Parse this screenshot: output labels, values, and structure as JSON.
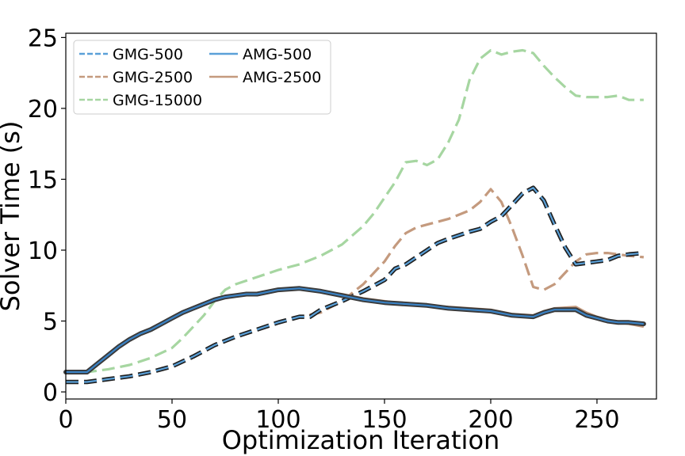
{
  "chart_data": {
    "type": "line",
    "title": "",
    "xlabel": "Optimization Iteration",
    "ylabel": "Solver Time (s)",
    "xlim": [
      0,
      278
    ],
    "ylim": [
      -0.5,
      25.3
    ],
    "xticks": [
      0,
      50,
      100,
      150,
      200,
      250
    ],
    "yticks": [
      0,
      5,
      10,
      15,
      20,
      25
    ],
    "legend": {
      "location": "top-left",
      "columns": 2,
      "entries": [
        "GMG-500",
        "AMG-500",
        "GMG-2500",
        "AMG-2500",
        "GMG-15000"
      ]
    },
    "colors": {
      "blue": "#5aa0d8",
      "brown": "#c49a7e",
      "green": "#a6d6a1",
      "dark": "#1f1f1f",
      "amg_blue": "#3a82c4"
    },
    "series": [
      {
        "name": "GMG-15000",
        "style": "dashed",
        "color": "#a6d6a1",
        "x": [
          0,
          10,
          20,
          30,
          40,
          50,
          55,
          60,
          65,
          70,
          75,
          80,
          90,
          100,
          110,
          120,
          130,
          140,
          145,
          150,
          155,
          160,
          165,
          170,
          175,
          180,
          185,
          190,
          195,
          200,
          205,
          210,
          215,
          220,
          225,
          230,
          235,
          240,
          245,
          250,
          255,
          260,
          265,
          272
        ],
        "values": [
          1.4,
          1.4,
          1.6,
          1.9,
          2.4,
          3.1,
          3.8,
          4.6,
          5.4,
          6.4,
          7.2,
          7.6,
          8.1,
          8.6,
          9.0,
          9.6,
          10.4,
          11.7,
          12.6,
          13.7,
          14.8,
          16.2,
          16.3,
          16.0,
          16.4,
          17.6,
          19.2,
          22.0,
          23.5,
          24.1,
          23.8,
          24.0,
          24.1,
          23.9,
          23.0,
          22.2,
          21.5,
          20.9,
          20.8,
          20.8,
          20.8,
          20.9,
          20.6,
          20.6
        ]
      },
      {
        "name": "GMG-2500",
        "style": "dashed",
        "color": "#c49a7e",
        "x": [
          0,
          10,
          20,
          30,
          40,
          50,
          60,
          70,
          80,
          90,
          100,
          110,
          120,
          130,
          140,
          150,
          155,
          160,
          165,
          170,
          180,
          190,
          195,
          200,
          205,
          210,
          215,
          220,
          225,
          230,
          235,
          240,
          245,
          250,
          255,
          260,
          265,
          272
        ],
        "values": [
          0.7,
          0.7,
          0.9,
          1.1,
          1.4,
          1.8,
          2.5,
          3.3,
          3.9,
          4.4,
          4.9,
          5.3,
          5.6,
          6.4,
          7.6,
          9.2,
          10.3,
          11.2,
          11.6,
          11.8,
          12.2,
          12.8,
          13.4,
          14.3,
          13.4,
          11.6,
          9.6,
          7.4,
          7.2,
          7.6,
          8.4,
          9.2,
          9.7,
          9.8,
          9.8,
          9.7,
          9.6,
          9.5
        ]
      },
      {
        "name": "GMG-500",
        "style": "dashed",
        "color": "#5aa0d8",
        "x": [
          0,
          10,
          20,
          30,
          40,
          50,
          60,
          70,
          80,
          90,
          100,
          110,
          115,
          120,
          130,
          140,
          150,
          155,
          160,
          170,
          175,
          180,
          190,
          195,
          200,
          205,
          210,
          215,
          220,
          225,
          230,
          235,
          240,
          245,
          250,
          255,
          260,
          265,
          272
        ],
        "values": [
          0.7,
          0.7,
          0.9,
          1.1,
          1.4,
          1.8,
          2.5,
          3.3,
          3.9,
          4.4,
          4.9,
          5.3,
          5.3,
          5.8,
          6.4,
          7.1,
          7.9,
          8.7,
          9.0,
          10.0,
          10.5,
          10.8,
          11.3,
          11.5,
          12.0,
          12.4,
          13.2,
          14.0,
          14.4,
          13.5,
          11.8,
          10.2,
          9.0,
          9.1,
          9.2,
          9.3,
          9.6,
          9.7,
          9.8
        ]
      },
      {
        "name": "AMG-2500",
        "style": "solid",
        "color": "#c49a7e",
        "x": [
          0,
          10,
          15,
          20,
          25,
          30,
          35,
          40,
          45,
          50,
          55,
          60,
          65,
          70,
          75,
          80,
          85,
          90,
          100,
          110,
          120,
          130,
          140,
          150,
          160,
          170,
          180,
          190,
          200,
          210,
          220,
          225,
          230,
          240,
          245,
          250,
          255,
          260,
          265,
          272
        ],
        "values": [
          1.4,
          1.4,
          2.0,
          2.6,
          3.2,
          3.7,
          4.1,
          4.4,
          4.8,
          5.2,
          5.6,
          5.9,
          6.2,
          6.5,
          6.7,
          6.8,
          6.9,
          6.9,
          7.2,
          7.3,
          7.1,
          6.9,
          6.6,
          6.4,
          6.2,
          6.1,
          6.0,
          5.9,
          5.8,
          5.5,
          5.4,
          5.7,
          5.9,
          6.0,
          5.6,
          5.3,
          5.1,
          4.9,
          4.8,
          4.6
        ]
      },
      {
        "name": "AMG-500",
        "style": "solid",
        "color": "#3a82c4",
        "x": [
          0,
          10,
          15,
          20,
          25,
          30,
          35,
          40,
          45,
          50,
          55,
          60,
          65,
          70,
          75,
          80,
          85,
          90,
          100,
          110,
          120,
          130,
          140,
          150,
          160,
          170,
          180,
          190,
          200,
          210,
          220,
          225,
          230,
          240,
          245,
          250,
          255,
          260,
          265,
          272
        ],
        "values": [
          1.4,
          1.4,
          2.0,
          2.6,
          3.2,
          3.7,
          4.1,
          4.4,
          4.8,
          5.2,
          5.6,
          5.9,
          6.2,
          6.5,
          6.7,
          6.8,
          6.9,
          6.9,
          7.2,
          7.3,
          7.1,
          6.8,
          6.5,
          6.3,
          6.2,
          6.1,
          5.9,
          5.8,
          5.7,
          5.4,
          5.3,
          5.6,
          5.8,
          5.8,
          5.4,
          5.2,
          5.0,
          4.9,
          4.9,
          4.8
        ]
      }
    ]
  }
}
